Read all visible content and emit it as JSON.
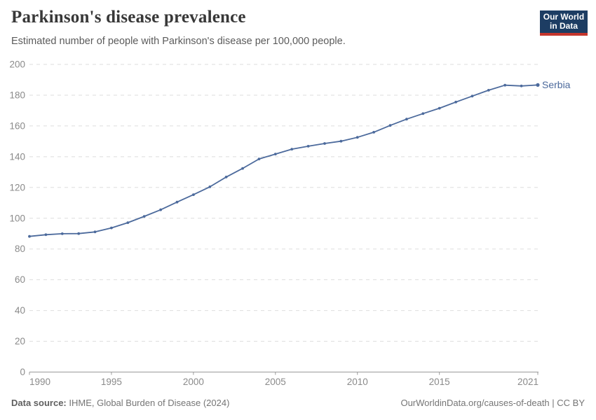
{
  "header": {
    "title": "Parkinson's disease prevalence",
    "subtitle": "Estimated number of people with Parkinson's disease per 100,000 people.",
    "logo": {
      "line1": "Our World",
      "line2": "in Data"
    }
  },
  "chart_data": {
    "type": "line",
    "title": "Parkinson's disease prevalence",
    "xlabel": "",
    "ylabel": "",
    "xlim": [
      1990,
      2021
    ],
    "ylim": [
      0,
      200
    ],
    "yticks": [
      0,
      20,
      40,
      60,
      80,
      100,
      120,
      140,
      160,
      180,
      200
    ],
    "xticks": [
      1990,
      1995,
      2000,
      2005,
      2010,
      2015,
      2021
    ],
    "grid": "horizontal-dashed",
    "legend_position": "end-of-line-label",
    "series": [
      {
        "name": "Serbia",
        "color": "#4c6a9c",
        "x": [
          1990,
          1991,
          1992,
          1993,
          1994,
          1995,
          1996,
          1997,
          1998,
          1999,
          2000,
          2001,
          2002,
          2003,
          2004,
          2005,
          2006,
          2007,
          2008,
          2009,
          2010,
          2011,
          2012,
          2013,
          2014,
          2015,
          2016,
          2017,
          2018,
          2019,
          2020,
          2021
        ],
        "values": [
          88.2,
          89.3,
          89.9,
          90.0,
          91.1,
          93.7,
          97.1,
          101.2,
          105.5,
          110.5,
          115.3,
          120.4,
          126.8,
          132.4,
          138.5,
          141.7,
          144.9,
          146.8,
          148.6,
          150.1,
          152.6,
          155.9,
          160.3,
          164.4,
          168.0,
          171.5,
          175.5,
          179.4,
          183.2,
          186.5,
          186.0,
          186.6
        ]
      }
    ]
  },
  "footer": {
    "datasource_label": "Data source:",
    "datasource_text": " IHME, Global Burden of Disease (2024)",
    "link": "OurWorldinData.org/causes-of-death | CC BY"
  },
  "colors": {
    "line": "#4c6a9c",
    "grid": "#dedede",
    "axis": "#9a9a9a",
    "tick_label": "#8a8a8a",
    "title": "#383838",
    "subtitle": "#5b5b5b",
    "footer": "#757575",
    "logo_bg": "#1d3d63",
    "logo_accent": "#c4352c"
  }
}
